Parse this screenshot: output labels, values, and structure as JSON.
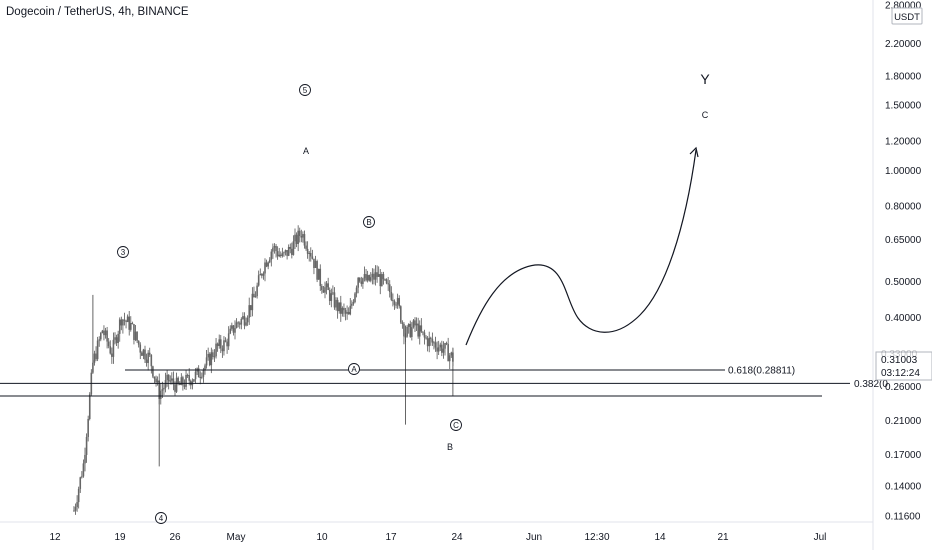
{
  "header": {
    "title": "Dogecoin / TetherUS, 4h, BINANCE"
  },
  "chart_data": {
    "type": "candlestick",
    "title": "Dogecoin / TetherUS, 4h, BINANCE",
    "currency_badge": "USDT",
    "y_scale": "log",
    "ylim": [
      0.11,
      2.9
    ],
    "y_ticks": [
      "2.80000",
      "2.20000",
      "1.80000",
      "1.50000",
      "1.20000",
      "1.00000",
      "0.80000",
      "0.65000",
      "0.50000",
      "0.40000",
      "0.26000",
      "0.21000",
      "0.17000",
      "0.14000",
      "0.11600"
    ],
    "x_ticks": [
      "12",
      "19",
      "26",
      "May",
      "10",
      "17",
      "24",
      "Jun",
      "12:30",
      "14",
      "21",
      "Jul"
    ],
    "price_label": {
      "value": "0.31003",
      "countdown": "03:12:24"
    },
    "hidden_label": "0.33000",
    "series": [
      {
        "dates": [
          "2021-04-14",
          "2021-04-15",
          "2021-04-16",
          "2021-04-17",
          "2021-04-18",
          "2021-04-19",
          "2021-04-20",
          "2021-04-21",
          "2021-04-22",
          "2021-04-23",
          "2021-04-24",
          "2021-04-25",
          "2021-04-26",
          "2021-04-27",
          "2021-04-28",
          "2021-04-29",
          "2021-04-30",
          "2021-05-01",
          "2021-05-02",
          "2021-05-03",
          "2021-05-04",
          "2021-05-05",
          "2021-05-06",
          "2021-05-07",
          "2021-05-08",
          "2021-05-09",
          "2021-05-10",
          "2021-05-11",
          "2021-05-12",
          "2021-05-13",
          "2021-05-14",
          "2021-05-15",
          "2021-05-16",
          "2021-05-17",
          "2021-05-18",
          "2021-05-19",
          "2021-05-20",
          "2021-05-21",
          "2021-05-22",
          "2021-05-23",
          "2021-05-24"
        ],
        "close": [
          0.12,
          0.16,
          0.3,
          0.37,
          0.32,
          0.4,
          0.38,
          0.33,
          0.31,
          0.25,
          0.27,
          0.26,
          0.27,
          0.28,
          0.3,
          0.33,
          0.34,
          0.38,
          0.4,
          0.45,
          0.55,
          0.62,
          0.58,
          0.62,
          0.68,
          0.6,
          0.5,
          0.46,
          0.42,
          0.4,
          0.52,
          0.5,
          0.52,
          0.48,
          0.45,
          0.36,
          0.38,
          0.35,
          0.34,
          0.33,
          0.31
        ]
      }
    ],
    "waves": {
      "projection_labels": [
        "Y",
        "C"
      ],
      "labels": [
        "3",
        "4",
        "5",
        "A",
        "B",
        "A",
        "B",
        "C",
        "B"
      ]
    },
    "levels": [
      {
        "label": "0.618(0.28811)",
        "price": 0.2881
      },
      {
        "label": "0.382(0",
        "price": 0.265
      },
      {
        "label": "",
        "price": 0.245
      }
    ]
  }
}
